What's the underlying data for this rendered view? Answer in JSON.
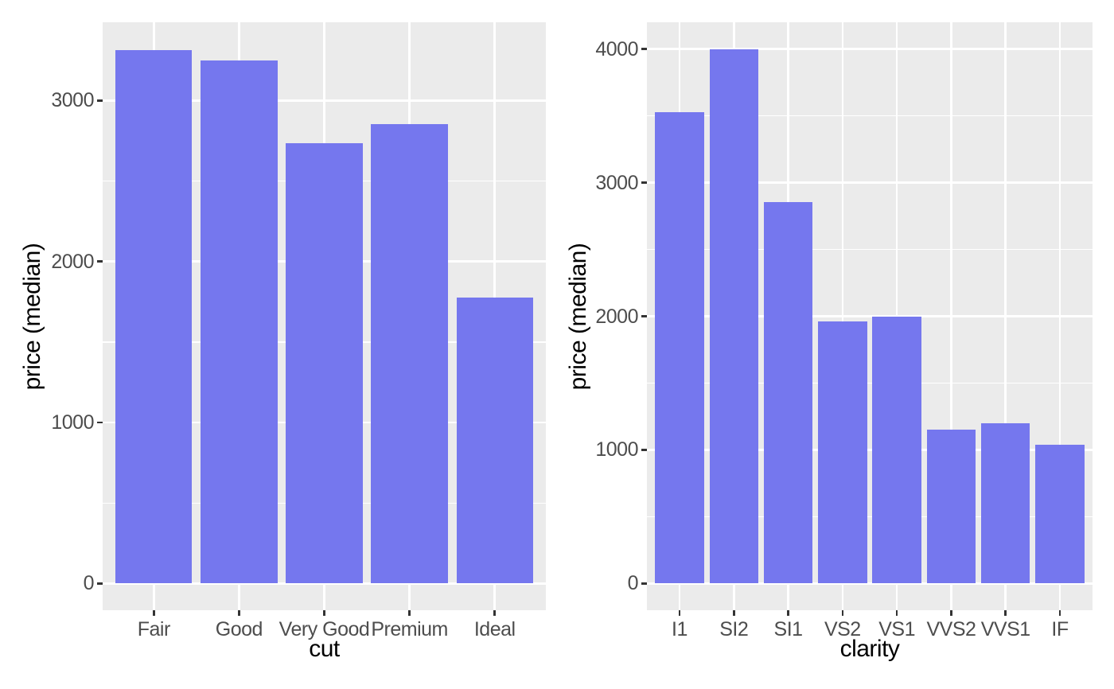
{
  "page": {
    "background": "#ffffff"
  },
  "style": {
    "bar_fill": "#7577ee",
    "panel_bg": "#ebebeb",
    "grid_color": "#ffffff",
    "tick_mark_color": "#333333",
    "tick_label_color": "#4d4d4d",
    "axis_title_color": "#000000"
  },
  "chart_data": [
    {
      "type": "bar",
      "title": "",
      "xlabel": "cut",
      "ylabel": "price (median)",
      "categories": [
        "Fair",
        "Good",
        "Very Good",
        "Premium",
        "Ideal"
      ],
      "values": [
        3315,
        3250,
        2735,
        2855,
        1775
      ],
      "yticks": [
        0,
        1000,
        2000,
        3000
      ],
      "minor_tick_step": 500,
      "ylim": [
        -166,
        3486
      ],
      "grid": "major+minor",
      "legend_position": "none"
    },
    {
      "type": "bar",
      "title": "",
      "xlabel": "clarity",
      "ylabel": "price (median)",
      "categories": [
        "I1",
        "SI2",
        "SI1",
        "VS2",
        "VS1",
        "VVS2",
        "VVS1",
        "IF"
      ],
      "values": [
        3530,
        4000,
        2855,
        1960,
        2000,
        1150,
        1200,
        1040
      ],
      "yticks": [
        0,
        1000,
        2000,
        3000,
        4000
      ],
      "minor_tick_step": 500,
      "ylim": [
        -200,
        4200
      ],
      "grid": "major+minor",
      "legend_position": "none"
    }
  ]
}
